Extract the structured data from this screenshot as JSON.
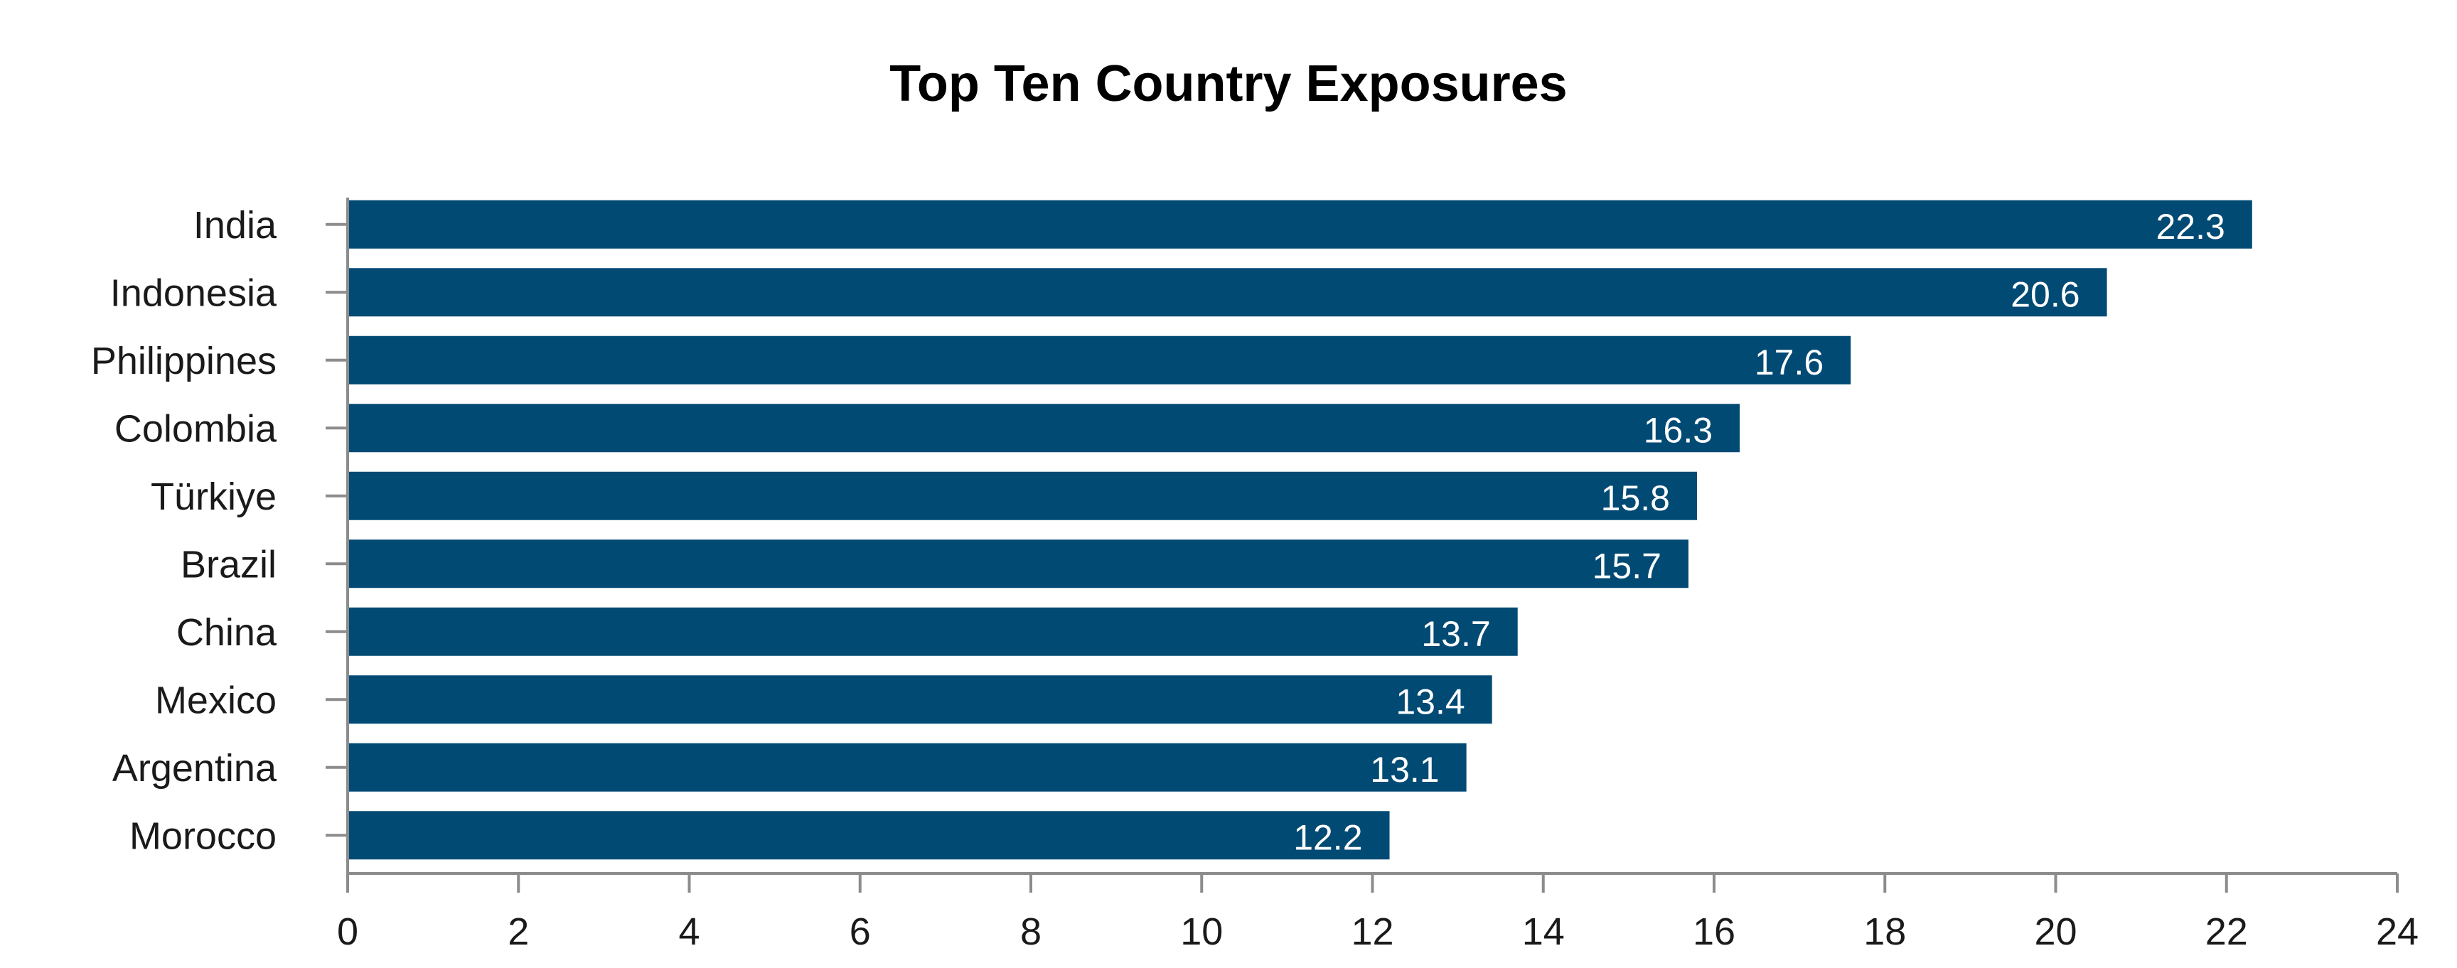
{
  "chart_data": {
    "type": "bar",
    "orientation": "horizontal",
    "title": "Top Ten Country Exposures",
    "xlabel": "",
    "ylabel": "",
    "categories": [
      "India",
      "Indonesia",
      "Philippines",
      "Colombia",
      "Türkiye",
      "Brazil",
      "China",
      "Mexico",
      "Argentina",
      "Morocco"
    ],
    "values": [
      22.3,
      20.6,
      17.6,
      16.3,
      15.8,
      15.7,
      13.7,
      13.4,
      13.1,
      12.2
    ],
    "data_labels": [
      "22.3",
      "20.6",
      "17.6",
      "16.3",
      "15.8",
      "15.7",
      "13.7",
      "13.4",
      "13.1",
      "12.2"
    ],
    "xlim": [
      0,
      24
    ],
    "x_ticks": [
      0,
      2,
      4,
      6,
      8,
      10,
      12,
      14,
      16,
      18,
      20,
      22,
      24
    ],
    "x_tick_labels": [
      "0",
      "2",
      "4",
      "6",
      "8",
      "10",
      "12",
      "14",
      "16",
      "18",
      "20",
      "22",
      "24"
    ],
    "grid": false,
    "legend": "none",
    "bar_color": "#004a74",
    "data_label_color": "#ffffff"
  }
}
